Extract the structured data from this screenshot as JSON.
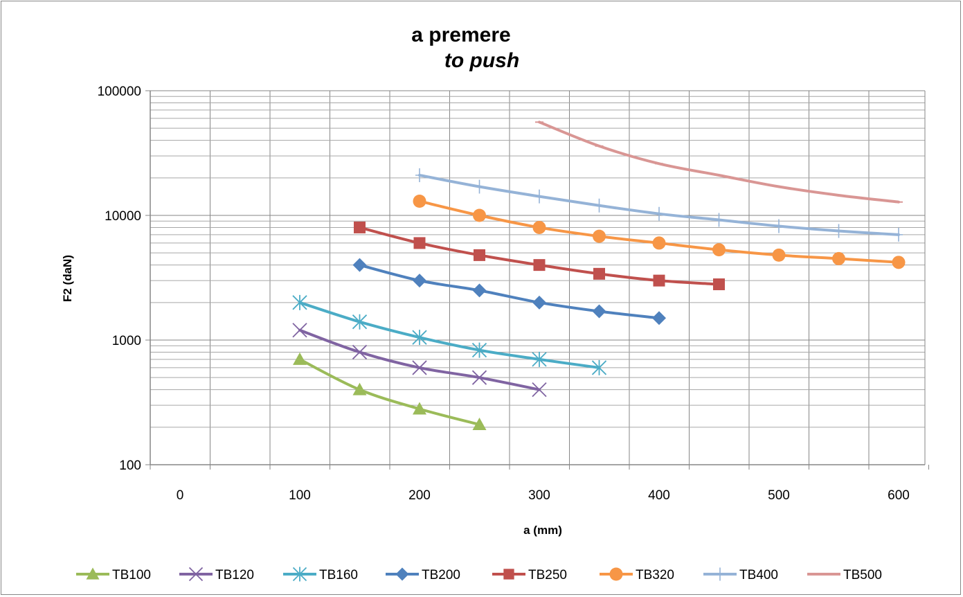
{
  "chart_data": {
    "type": "line",
    "title": "a  premere",
    "subtitle": "to push",
    "xlabel": "a (mm)",
    "ylabel": "F2 (daN)",
    "x_scale": "linear",
    "y_scale": "log",
    "xlim": [
      0,
      600
    ],
    "ylim": [
      100,
      100000
    ],
    "x_ticks": [
      "0",
      "100",
      "200",
      "300",
      "400",
      "500",
      "600"
    ],
    "y_ticks": [
      "100",
      "1000",
      "10000",
      "100000"
    ],
    "grid": true,
    "legend_position": "bottom",
    "series": [
      {
        "name": "TB100",
        "color": "#9BBB59",
        "marker": "triangle",
        "x": [
          100,
          150,
          200,
          250
        ],
        "y": [
          700,
          400,
          280,
          210
        ]
      },
      {
        "name": "TB120",
        "color": "#8064A2",
        "marker": "x",
        "x": [
          100,
          150,
          200,
          250,
          300
        ],
        "y": [
          1200,
          800,
          600,
          500,
          400
        ]
      },
      {
        "name": "TB160",
        "color": "#4BACC6",
        "marker": "star",
        "x": [
          100,
          150,
          200,
          250,
          300,
          350
        ],
        "y": [
          2000,
          1400,
          1050,
          830,
          700,
          600
        ]
      },
      {
        "name": "TB200",
        "color": "#4F81BD",
        "marker": "diamond",
        "x": [
          150,
          200,
          250,
          300,
          350,
          400
        ],
        "y": [
          4000,
          3000,
          2500,
          2000,
          1700,
          1500
        ]
      },
      {
        "name": "TB250",
        "color": "#C0504D",
        "marker": "square",
        "x": [
          150,
          200,
          250,
          300,
          350,
          400,
          450
        ],
        "y": [
          8000,
          6000,
          4800,
          4000,
          3400,
          3000,
          2800
        ]
      },
      {
        "name": "TB320",
        "color": "#F79646",
        "marker": "circle",
        "x": [
          200,
          250,
          300,
          350,
          400,
          450,
          500,
          550,
          600
        ],
        "y": [
          13000,
          10000,
          8000,
          6800,
          6000,
          5300,
          4800,
          4500,
          4200
        ]
      },
      {
        "name": "TB400",
        "color": "#95B3D7",
        "marker": "plus",
        "x": [
          200,
          250,
          300,
          350,
          400,
          450,
          500,
          550,
          600
        ],
        "y": [
          21000,
          17000,
          14200,
          12000,
          10300,
          9200,
          8200,
          7500,
          7000
        ]
      },
      {
        "name": "TB500",
        "color": "#D99694",
        "marker": "dash",
        "x": [
          300,
          350,
          400,
          450,
          500,
          550,
          600
        ],
        "y": [
          56000,
          36000,
          26000,
          21000,
          17000,
          14500,
          12800
        ]
      }
    ]
  }
}
